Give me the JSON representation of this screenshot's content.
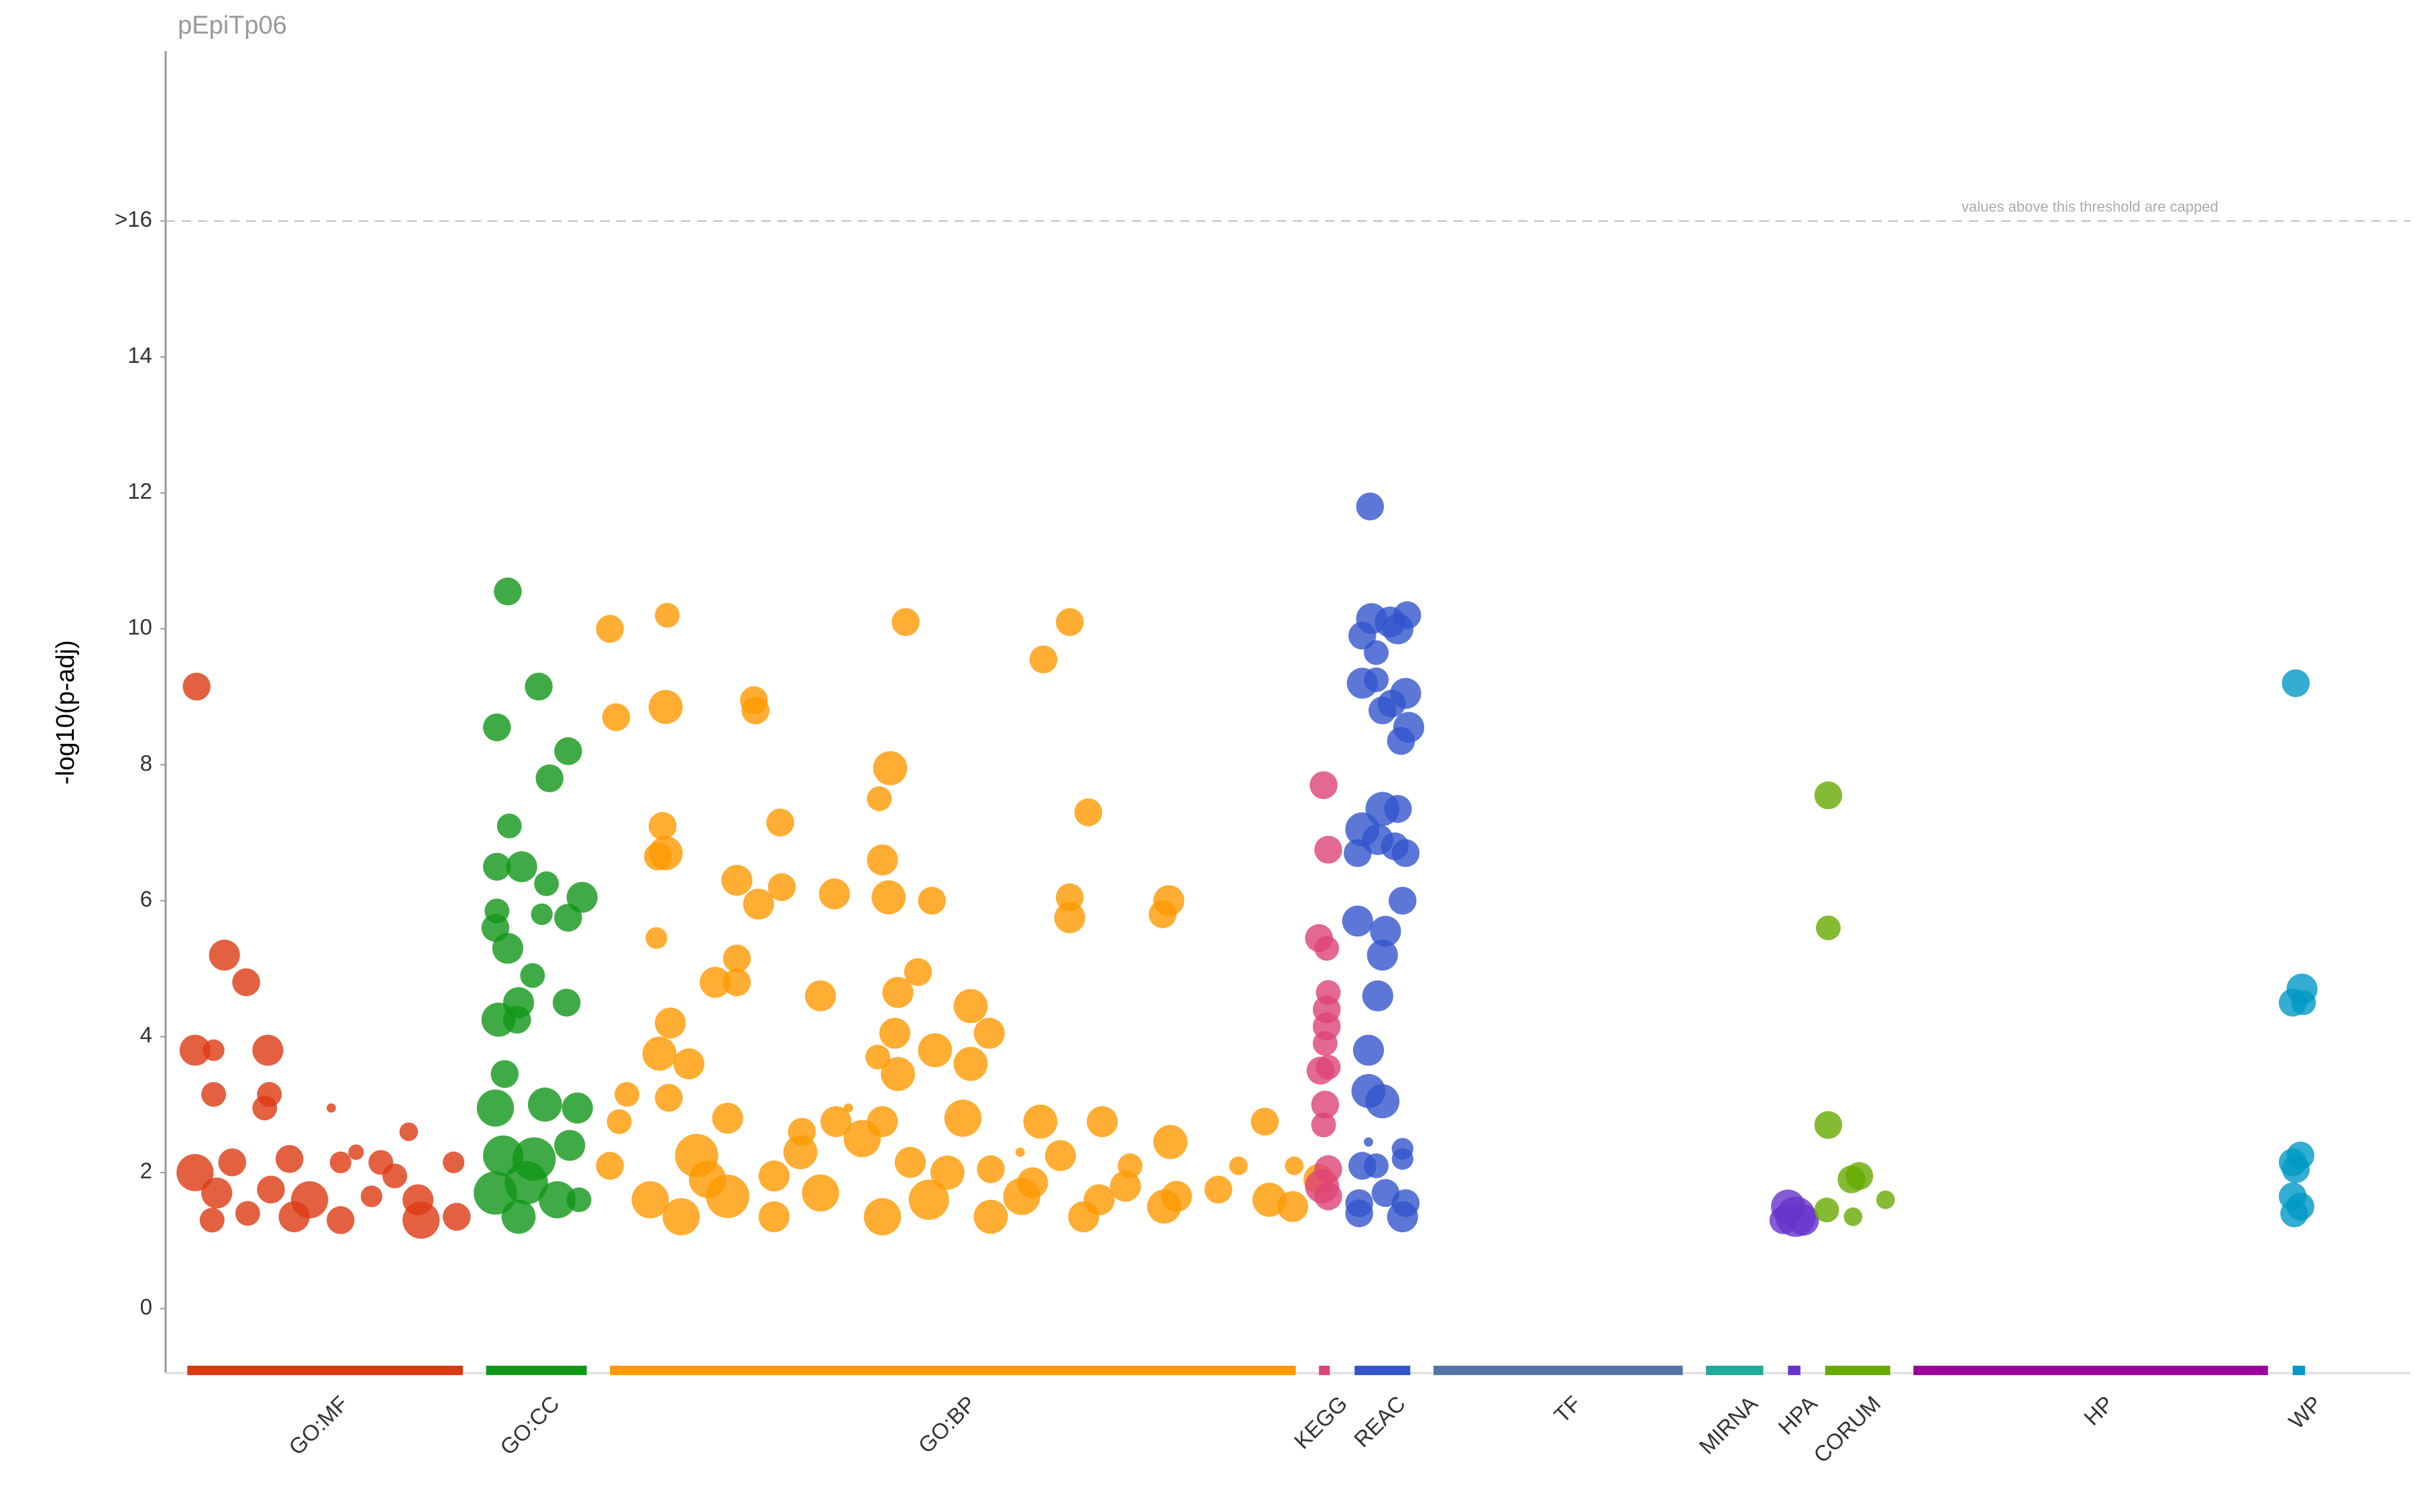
{
  "chart_data": {
    "type": "manhattan",
    "title": "pEpiTp06",
    "y_label": "-log10(p-adj)",
    "annotation": "values above this threshold are capped",
    "threshold": 16,
    "xlim": [
      0,
      1450
    ],
    "ylim": [
      -0.95,
      18.5
    ],
    "yticks": [
      0,
      2,
      4,
      6,
      8,
      10,
      12,
      14,
      {
        "value": 16,
        "label": ">16"
      }
    ],
    "series": [
      {
        "name": "GO:MF",
        "color": "#dc3912",
        "segment": [
          14,
          192
        ],
        "x": [
          20,
          38,
          52,
          19,
          31,
          66,
          31,
          67,
          64,
          107,
          19,
          43,
          80,
          113,
          123,
          139,
          157,
          186,
          33,
          68,
          93,
          148,
          163,
          30,
          83,
          113,
          165,
          188,
          53,
          133
        ],
        "values": [
          9.15,
          5.2,
          4.8,
          3.8,
          3.8,
          3.8,
          3.15,
          3.15,
          2.95,
          2.95,
          2.0,
          2.15,
          2.2,
          2.15,
          2.3,
          2.15,
          2.6,
          2.15,
          1.7,
          1.75,
          1.6,
          1.95,
          1.6,
          1.3,
          1.35,
          1.3,
          1.3,
          1.35,
          1.4,
          1.65
        ],
        "sizes": [
          9,
          10,
          9,
          10,
          7,
          10,
          8,
          8,
          8,
          3,
          12,
          9,
          9,
          7,
          5,
          8,
          6,
          7,
          10,
          9,
          12,
          8,
          10,
          8,
          10,
          9,
          12,
          9,
          8,
          7
        ]
      },
      {
        "name": "GO:CC",
        "color": "#109618",
        "segment": [
          207,
          272
        ],
        "x": [
          221,
          241,
          214,
          260,
          248,
          222,
          214,
          230,
          246,
          269,
          214,
          243,
          260,
          213,
          221,
          237,
          259,
          228,
          215,
          227,
          219,
          213,
          245,
          266,
          218,
          238,
          261,
          213,
          233,
          253,
          228,
          267
        ],
        "values": [
          10.55,
          9.15,
          8.55,
          8.2,
          7.8,
          7.1,
          6.5,
          6.5,
          6.25,
          6.05,
          5.85,
          5.8,
          5.75,
          5.6,
          5.3,
          4.9,
          4.5,
          4.5,
          4.25,
          4.25,
          3.45,
          2.95,
          3.0,
          2.95,
          2.25,
          2.2,
          2.4,
          1.7,
          1.85,
          1.6,
          1.35,
          1.6
        ],
        "sizes": [
          9,
          9,
          9,
          9,
          9,
          8,
          9,
          10,
          8,
          10,
          8,
          7,
          9,
          9,
          10,
          8,
          9,
          10,
          11,
          9,
          9,
          12,
          11,
          10,
          13,
          14,
          10,
          14,
          14,
          12,
          11,
          8
        ]
      },
      {
        "name": "GO:BP",
        "color": "#ff9900",
        "segment": [
          287,
          730
        ],
        "x": [
          287,
          324,
          478,
          584,
          380,
          567,
          323,
          291,
          381,
          468,
          397,
          321,
          461,
          596,
          323,
          318,
          463,
          369,
          398,
          432,
          383,
          467,
          495,
          584,
          648,
          644,
          584,
          317,
          369,
          486,
          355,
          369,
          423,
          473,
          520,
          326,
          532,
          471,
          497,
          319,
          460,
          338,
          520,
          473,
          298,
          325,
          293,
          363,
          433,
          463,
          515,
          565,
          605,
          649,
          710,
          411,
          287,
          343,
          393,
          481,
          533,
          578,
          623,
          693,
          729,
          313,
          363,
          423,
          493,
          553,
          603,
          653,
          713,
          333,
          393,
          463,
          533,
          593,
          645,
          728,
          552,
          441,
          350,
          410,
          505,
          560,
          620,
          680,
          745,
          450
        ],
        "values": [
          10.0,
          10.2,
          10.1,
          10.1,
          8.95,
          9.55,
          8.85,
          8.7,
          8.8,
          7.95,
          7.15,
          7.1,
          7.5,
          7.3,
          6.7,
          6.65,
          6.6,
          6.3,
          6.2,
          6.1,
          5.95,
          6.05,
          6.0,
          6.05,
          6.0,
          5.8,
          5.75,
          5.45,
          5.15,
          4.95,
          4.8,
          4.8,
          4.6,
          4.65,
          4.45,
          4.2,
          4.05,
          4.05,
          3.8,
          3.75,
          3.7,
          3.6,
          3.6,
          3.45,
          3.15,
          3.1,
          2.75,
          2.8,
          2.75,
          2.75,
          2.8,
          2.75,
          2.75,
          2.45,
          2.75,
          2.6,
          2.1,
          2.25,
          1.95,
          2.15,
          2.05,
          2.25,
          2.1,
          2.1,
          2.1,
          1.6,
          1.65,
          1.7,
          1.6,
          1.65,
          1.6,
          1.65,
          1.6,
          1.35,
          1.35,
          1.35,
          1.35,
          1.35,
          1.5,
          1.5,
          2.3,
          2.95,
          1.9,
          2.3,
          2.0,
          1.85,
          1.8,
          1.75,
          1.9,
          2.5
        ],
        "sizes": [
          9,
          8,
          9,
          9,
          9,
          9,
          11,
          9,
          9,
          11,
          9,
          9,
          8,
          9,
          11,
          9,
          10,
          10,
          9,
          10,
          10,
          11,
          9,
          9,
          10,
          9,
          10,
          7,
          9,
          9,
          10,
          9,
          10,
          10,
          11,
          10,
          10,
          10,
          11,
          11,
          8,
          10,
          11,
          11,
          8,
          9,
          8,
          10,
          10,
          10,
          12,
          11,
          10,
          11,
          9,
          9,
          9,
          14,
          10,
          10,
          9,
          10,
          8,
          6,
          6,
          12,
          14,
          12,
          13,
          12,
          10,
          10,
          11,
          12,
          10,
          12,
          11,
          10,
          11,
          10,
          3,
          3,
          12,
          11,
          11,
          10,
          10,
          9,
          10,
          12
        ]
      },
      {
        "name": "KEGG",
        "color": "#dd4477",
        "segment": [
          745,
          752
        ],
        "x": [
          748,
          751,
          745,
          750,
          751,
          750,
          750,
          749,
          746,
          751,
          749,
          748,
          751,
          747,
          751
        ],
        "values": [
          7.7,
          6.75,
          5.45,
          5.3,
          4.65,
          4.4,
          4.15,
          3.9,
          3.5,
          3.55,
          3.0,
          2.7,
          2.05,
          1.8,
          1.65
        ],
        "sizes": [
          9,
          9,
          9,
          8,
          8,
          9,
          9,
          8,
          9,
          8,
          9,
          8,
          9,
          11,
          9
        ]
      },
      {
        "name": "REAC",
        "color": "#3355cc",
        "segment": [
          768,
          804
        ],
        "x": [
          778,
          779,
          802,
          791,
          773,
          796,
          782,
          773,
          782,
          801,
          792,
          786,
          803,
          798,
          773,
          786,
          796,
          783,
          794,
          770,
          801,
          799,
          770,
          788,
          786,
          783,
          777,
          777,
          786,
          777,
          799,
          773,
          782,
          799,
          771,
          788,
          801,
          771,
          799
        ],
        "values": [
          11.8,
          10.15,
          10.2,
          10.1,
          9.9,
          10.0,
          9.65,
          9.2,
          9.25,
          9.05,
          8.9,
          8.8,
          8.55,
          8.35,
          7.05,
          7.35,
          7.35,
          6.9,
          6.8,
          6.7,
          6.7,
          6.0,
          5.7,
          5.55,
          5.2,
          4.6,
          3.8,
          3.2,
          3.05,
          2.45,
          2.35,
          2.1,
          2.1,
          2.2,
          1.55,
          1.7,
          1.55,
          1.4,
          1.35
        ],
        "sizes": [
          9,
          10,
          9,
          10,
          9,
          10,
          8,
          10,
          8,
          10,
          9,
          9,
          10,
          9,
          11,
          11,
          9,
          10,
          9,
          9,
          9,
          9,
          10,
          10,
          10,
          10,
          10,
          11,
          11,
          3,
          7,
          9,
          8,
          7,
          9,
          9,
          9,
          9,
          10
        ]
      },
      {
        "name": "TF",
        "color": "#5574a6",
        "segment": [
          819,
          980
        ],
        "x": [],
        "values": [],
        "sizes": []
      },
      {
        "name": "MIRNA",
        "color": "#22aa99",
        "segment": [
          995,
          1032
        ],
        "x": [],
        "values": [],
        "sizes": []
      },
      {
        "name": "HPA",
        "color": "#6633cc",
        "segment": [
          1048,
          1056
        ],
        "x": [
          1048,
          1053,
          1045,
          1058
        ],
        "values": [
          1.5,
          1.35,
          1.3,
          1.3
        ],
        "sizes": [
          11,
          13,
          9,
          10
        ]
      },
      {
        "name": "CORUM",
        "color": "#66aa00",
        "segment": [
          1072,
          1114
        ],
        "x": [
          1074,
          1074,
          1074,
          1094,
          1089,
          1073,
          1111,
          1090
        ],
        "values": [
          7.55,
          5.6,
          2.7,
          1.95,
          1.9,
          1.45,
          1.6,
          1.35
        ],
        "sizes": [
          9,
          8,
          9,
          9,
          9,
          8,
          6,
          6
        ]
      },
      {
        "name": "HP",
        "color": "#990099",
        "segment": [
          1129,
          1358
        ],
        "x": [],
        "values": [],
        "sizes": []
      },
      {
        "name": "WP",
        "color": "#0099c6",
        "segment": [
          1374,
          1382
        ],
        "x": [
          1376,
          1380,
          1374,
          1381,
          1379,
          1374,
          1376,
          1374,
          1379,
          1375
        ],
        "values": [
          9.2,
          4.7,
          4.5,
          4.5,
          2.25,
          2.15,
          2.05,
          1.65,
          1.5,
          1.4
        ],
        "sizes": [
          9,
          10,
          9,
          8,
          9,
          9,
          9,
          9,
          9,
          9
        ]
      }
    ]
  }
}
